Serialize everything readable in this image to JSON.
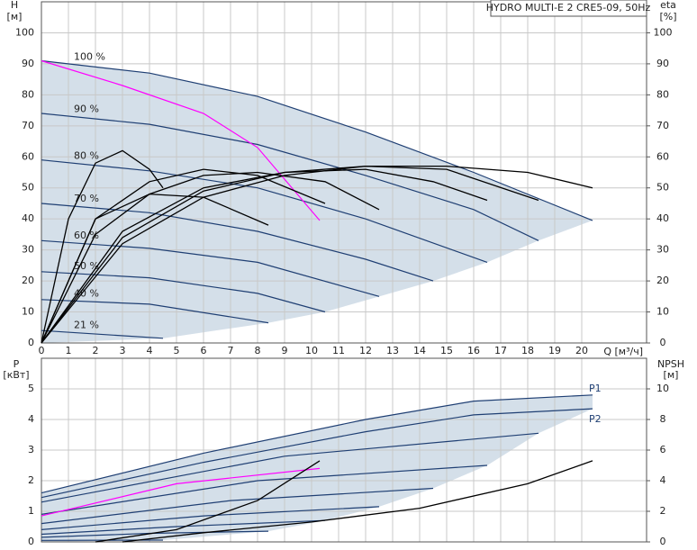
{
  "chart_data": [
    {
      "type": "line",
      "title": "HYDRO MULTI-E 2 CRE5-09, 50Hz",
      "y_label": "H",
      "y_unit": "[м]",
      "y2_label": "eta",
      "y2_unit": "[%]",
      "x_label": "Q [м³/ч]",
      "xlim": [
        0,
        22.4
      ],
      "ylim": [
        0,
        110
      ],
      "y2lim": [
        0,
        110
      ],
      "xticks": [
        0,
        1,
        2,
        3,
        4,
        5,
        6,
        7,
        8,
        9,
        10,
        11,
        12,
        13,
        14,
        15,
        16,
        17,
        18,
        19,
        20
      ],
      "yticks": [
        0,
        10,
        20,
        30,
        40,
        50,
        60,
        70,
        80,
        90,
        100
      ],
      "y2ticks": [
        0,
        10,
        20,
        30,
        40,
        50,
        60,
        70,
        80,
        90,
        100
      ],
      "xtick_labels": true,
      "grid": true,
      "region_color": "#cdd9e5",
      "series": [
        {
          "name": "100 %",
          "color": "#1f3f73",
          "x": [
            0,
            4,
            8,
            12,
            16,
            20.4
          ],
          "values": [
            91,
            87,
            79.5,
            68,
            55,
            39.5
          ]
        },
        {
          "name": "90 %",
          "color": "#1f3f73",
          "x": [
            0,
            4,
            8,
            12,
            16,
            18.4
          ],
          "values": [
            74,
            70.5,
            64,
            54,
            43,
            33
          ]
        },
        {
          "name": "80 %",
          "color": "#1f3f73",
          "x": [
            0,
            4,
            8,
            12,
            16.5
          ],
          "values": [
            59,
            55.5,
            50,
            40,
            26
          ]
        },
        {
          "name": "70 %",
          "color": "#1f3f73",
          "x": [
            0,
            4,
            8,
            12,
            14.5
          ],
          "values": [
            45,
            42,
            36,
            27,
            20
          ]
        },
        {
          "name": "60 %",
          "color": "#1f3f73",
          "x": [
            0,
            4,
            8,
            12.5
          ],
          "values": [
            33,
            30.5,
            26,
            15
          ]
        },
        {
          "name": "50 %",
          "color": "#1f3f73",
          "x": [
            0,
            4,
            8,
            10.5
          ],
          "values": [
            23,
            21,
            16,
            10
          ]
        },
        {
          "name": "40 %",
          "color": "#1f3f73",
          "x": [
            0,
            4,
            8.4
          ],
          "values": [
            14,
            12.5,
            6.5
          ]
        },
        {
          "name": "21 %",
          "color": "#1f3f73",
          "x": [
            0,
            4.5
          ],
          "values": [
            4,
            1.5
          ]
        },
        {
          "color": "#ff00ff",
          "x": [
            0,
            3,
            6,
            8,
            10.3
          ],
          "values": [
            91,
            83,
            74,
            63,
            39.5
          ]
        },
        {
          "color": "#000000",
          "axis": "y2",
          "x": [
            0,
            3,
            6,
            9,
            12,
            15,
            18,
            20.4
          ],
          "values": [
            0,
            32,
            47,
            54,
            57,
            57,
            55,
            50
          ]
        },
        {
          "color": "#000000",
          "axis": "y2",
          "x": [
            0,
            3,
            6,
            9,
            12,
            15,
            18.4
          ],
          "values": [
            0,
            34,
            49,
            55,
            57,
            56,
            46
          ]
        },
        {
          "color": "#000000",
          "axis": "y2",
          "x": [
            0,
            3,
            6,
            9,
            12,
            14.5,
            16.5
          ],
          "values": [
            0,
            36,
            50,
            55,
            56,
            52,
            46
          ]
        },
        {
          "color": "#000000",
          "axis": "y2",
          "x": [
            0,
            2,
            4,
            6,
            8,
            10.5,
            12.5
          ],
          "values": [
            0,
            35,
            48,
            54,
            55,
            52,
            43
          ]
        },
        {
          "color": "#000000",
          "axis": "y2",
          "x": [
            0,
            2,
            4,
            6,
            8,
            10.5
          ],
          "values": [
            0,
            40,
            52,
            56,
            54,
            45
          ]
        },
        {
          "color": "#000000",
          "axis": "y2",
          "x": [
            0,
            2,
            4,
            6,
            8.4
          ],
          "values": [
            0,
            40,
            48,
            47,
            38
          ]
        },
        {
          "color": "#000000",
          "axis": "y2",
          "x": [
            0,
            1,
            2,
            3,
            4,
            4.5
          ],
          "values": [
            0,
            40,
            58,
            62,
            56,
            50
          ]
        }
      ]
    },
    {
      "type": "line",
      "y_label": "P",
      "y_unit": "[кВт]",
      "y2_label": "NPSH",
      "y2_unit": "[м]",
      "xlim": [
        0,
        22.4
      ],
      "ylim": [
        0,
        6
      ],
      "y2lim": [
        0,
        12
      ],
      "xticks": [
        0,
        1,
        2,
        3,
        4,
        5,
        6,
        7,
        8,
        9,
        10,
        11,
        12,
        13,
        14,
        15,
        16,
        17,
        18,
        19,
        20
      ],
      "yticks": [
        0,
        1,
        2,
        3,
        4,
        5
      ],
      "y2ticks": [
        0,
        2,
        4,
        6,
        8,
        10
      ],
      "xtick_labels": false,
      "grid": true,
      "region_color": "#cdd9e5",
      "series": [
        {
          "name": "P1",
          "color": "#1f3f73",
          "x": [
            0,
            6,
            12,
            16,
            20.4
          ],
          "values": [
            1.6,
            2.9,
            4.0,
            4.6,
            4.8
          ]
        },
        {
          "name": "P2",
          "color": "#1f3f73",
          "x": [
            0,
            6,
            12,
            16,
            20.4
          ],
          "values": [
            1.45,
            2.6,
            3.6,
            4.15,
            4.35
          ]
        },
        {
          "color": "#1f3f73",
          "x": [
            0,
            9,
            18.4
          ],
          "values": [
            1.3,
            2.8,
            3.55
          ]
        },
        {
          "color": "#1f3f73",
          "x": [
            0,
            8,
            16.5
          ],
          "values": [
            0.9,
            2.0,
            2.5
          ]
        },
        {
          "color": "#1f3f73",
          "x": [
            0,
            7,
            14.5
          ],
          "values": [
            0.6,
            1.35,
            1.75
          ]
        },
        {
          "color": "#1f3f73",
          "x": [
            0,
            6,
            12.5
          ],
          "values": [
            0.4,
            0.85,
            1.15
          ]
        },
        {
          "color": "#1f3f73",
          "x": [
            0,
            5,
            10.5
          ],
          "values": [
            0.25,
            0.5,
            0.7
          ]
        },
        {
          "color": "#1f3f73",
          "x": [
            0,
            4,
            8.4
          ],
          "values": [
            0.15,
            0.28,
            0.35
          ]
        },
        {
          "color": "#1f3f73",
          "x": [
            0,
            4.5
          ],
          "values": [
            0.05,
            0.06
          ]
        },
        {
          "color": "#ff00ff",
          "x": [
            0,
            5,
            10.3
          ],
          "values": [
            0.85,
            1.9,
            2.4
          ]
        },
        {
          "color": "#000000",
          "axis": "y2",
          "x": [
            3,
            6,
            10,
            14,
            18,
            20.4
          ],
          "values": [
            0,
            0.6,
            1.3,
            2.2,
            3.8,
            5.3
          ]
        },
        {
          "color": "#000000",
          "axis": "y2",
          "x": [
            2,
            5,
            8,
            10.3
          ],
          "values": [
            0,
            0.8,
            2.7,
            5.3
          ]
        }
      ]
    }
  ]
}
